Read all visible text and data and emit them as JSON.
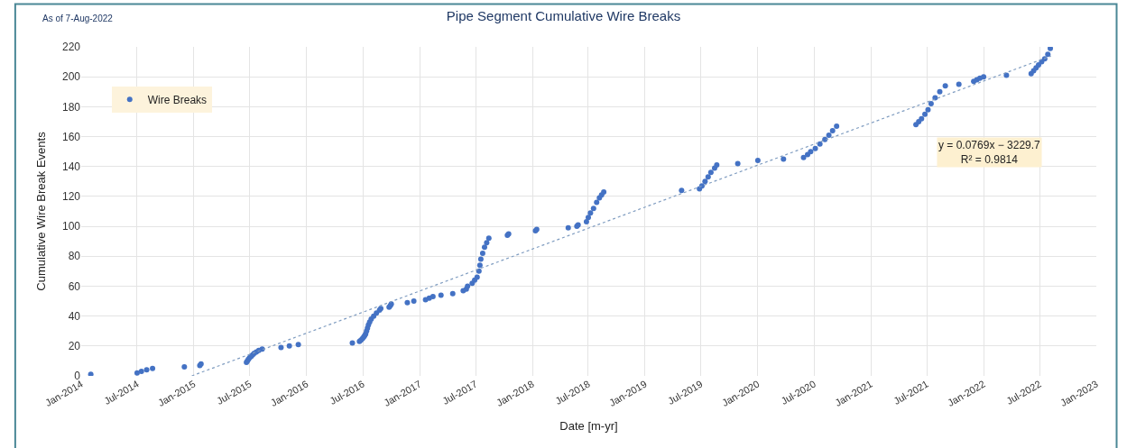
{
  "chart_data": {
    "type": "scatter",
    "title": "Pipe Segment Cumulative Wire Breaks",
    "xlabel": "Date [m-yr]",
    "ylabel": "Cumulative Wire Break Events",
    "annotations": [
      "As of 7-Aug-2022",
      "y = 0.0769x − 3229.7\nR² = 0.9814"
    ],
    "series": [
      {
        "name": "Wire Breaks",
        "color": "#4472c4",
        "marker": "circle",
        "x": [
          "2014-02-01",
          "2014-07-01",
          "2014-07-15",
          "2014-08-01",
          "2014-08-20",
          "2014-12-01",
          "2015-01-20",
          "2015-01-24",
          "2015-06-20",
          "2015-06-23",
          "2015-06-26",
          "2015-06-30",
          "2015-07-05",
          "2015-07-10",
          "2015-07-15",
          "2015-07-22",
          "2015-07-30",
          "2015-08-10",
          "2015-10-10",
          "2015-11-06",
          "2015-12-05",
          "2016-05-28",
          "2016-06-20",
          "2016-06-25",
          "2016-06-30",
          "2016-07-04",
          "2016-07-07",
          "2016-07-10",
          "2016-07-13",
          "2016-07-16",
          "2016-07-19",
          "2016-07-23",
          "2016-07-28",
          "2016-08-05",
          "2016-08-14",
          "2016-08-24",
          "2016-08-28",
          "2016-09-24",
          "2016-09-28",
          "2016-10-01",
          "2016-11-22",
          "2016-12-13",
          "2017-01-20",
          "2017-02-01",
          "2017-02-13",
          "2017-03-11",
          "2017-04-18",
          "2017-05-22",
          "2017-06-01",
          "2017-06-05",
          "2017-06-20",
          "2017-06-28",
          "2017-07-06",
          "2017-07-12",
          "2017-07-15",
          "2017-07-18",
          "2017-07-24",
          "2017-07-30",
          "2017-08-06",
          "2017-08-13",
          "2017-10-12",
          "2017-10-16",
          "2018-01-11",
          "2018-01-15",
          "2018-04-27",
          "2018-05-25",
          "2018-05-29",
          "2018-06-25",
          "2018-07-01",
          "2018-07-08",
          "2018-07-18",
          "2018-07-28",
          "2018-08-06",
          "2018-08-13",
          "2018-08-20",
          "2019-04-29",
          "2019-06-26",
          "2019-07-04",
          "2019-07-14",
          "2019-07-24",
          "2019-08-02",
          "2019-08-14",
          "2019-08-21",
          "2019-10-28",
          "2020-01-01",
          "2020-03-24",
          "2020-05-28",
          "2020-06-10",
          "2020-06-20",
          "2020-07-05",
          "2020-07-20",
          "2020-08-05",
          "2020-08-18",
          "2020-08-30",
          "2020-09-12",
          "2021-05-27",
          "2021-06-05",
          "2021-06-14",
          "2021-06-25",
          "2021-07-05",
          "2021-07-15",
          "2021-07-28",
          "2021-08-12",
          "2021-08-30",
          "2021-10-13",
          "2021-11-30",
          "2021-12-10",
          "2021-12-20",
          "2022-01-01",
          "2022-03-16",
          "2022-06-04",
          "2022-06-12",
          "2022-06-20",
          "2022-06-28",
          "2022-07-08",
          "2022-07-18",
          "2022-07-28",
          "2022-08-05"
        ],
        "values": [
          1,
          2,
          3,
          4,
          5,
          6,
          7,
          8,
          9,
          10,
          11,
          12,
          13,
          14,
          15,
          16,
          17,
          18,
          19,
          20,
          21,
          22,
          23,
          24,
          25,
          26,
          27,
          28,
          30,
          32,
          34,
          36,
          38,
          40,
          42,
          44,
          45,
          46,
          47,
          48,
          49,
          50,
          51,
          52,
          53,
          54,
          55,
          57,
          58,
          60,
          62,
          64,
          66,
          70,
          74,
          78,
          82,
          86,
          89,
          92,
          94,
          95,
          97,
          98,
          99,
          100,
          101,
          103,
          106,
          109,
          112,
          116,
          119,
          121,
          123,
          124,
          125,
          127,
          130,
          133,
          136,
          139,
          141,
          142,
          144,
          145,
          146,
          148,
          150,
          152,
          155,
          158,
          161,
          164,
          167,
          168,
          170,
          172,
          175,
          178,
          182,
          186,
          190,
          194,
          195,
          197,
          198,
          199,
          200,
          201,
          202,
          204,
          206,
          208,
          210,
          212,
          215,
          219
        ]
      },
      {
        "type": "line",
        "color": "#7f9cc0",
        "line_style": "dotted",
        "marker": "none",
        "x": [
          "2014-12-25",
          "2022-08-07"
        ],
        "values": [
          0,
          213.9
        ]
      }
    ],
    "xlim": [
      "2014-01-01",
      "2023-01-01"
    ],
    "xticks": [
      {
        "value": "2014-01-01",
        "label": "Jan-2014"
      },
      {
        "value": "2014-07-01",
        "label": "Jul-2014"
      },
      {
        "value": "2015-01-01",
        "label": "Jan-2015"
      },
      {
        "value": "2015-07-01",
        "label": "Jul-2015"
      },
      {
        "value": "2016-01-01",
        "label": "Jan-2016"
      },
      {
        "value": "2016-07-01",
        "label": "Jul-2016"
      },
      {
        "value": "2017-01-01",
        "label": "Jan-2017"
      },
      {
        "value": "2017-07-01",
        "label": "Jul-2017"
      },
      {
        "value": "2018-01-01",
        "label": "Jan-2018"
      },
      {
        "value": "2018-07-01",
        "label": "Jul-2018"
      },
      {
        "value": "2019-01-01",
        "label": "Jan-2019"
      },
      {
        "value": "2019-07-01",
        "label": "Jul-2019"
      },
      {
        "value": "2020-01-01",
        "label": "Jan-2020"
      },
      {
        "value": "2020-07-01",
        "label": "Jul-2020"
      },
      {
        "value": "2021-01-01",
        "label": "Jan-2021"
      },
      {
        "value": "2021-07-01",
        "label": "Jul-2021"
      },
      {
        "value": "2022-01-01",
        "label": "Jan-2022"
      },
      {
        "value": "2022-07-01",
        "label": "Jul-2022"
      },
      {
        "value": "2023-01-01",
        "label": "Jan-2023"
      }
    ],
    "ylim": [
      0,
      220
    ],
    "yticks": [
      0,
      20,
      40,
      60,
      80,
      100,
      120,
      140,
      160,
      180,
      200,
      220
    ],
    "grid": true,
    "legend": "top left"
  }
}
